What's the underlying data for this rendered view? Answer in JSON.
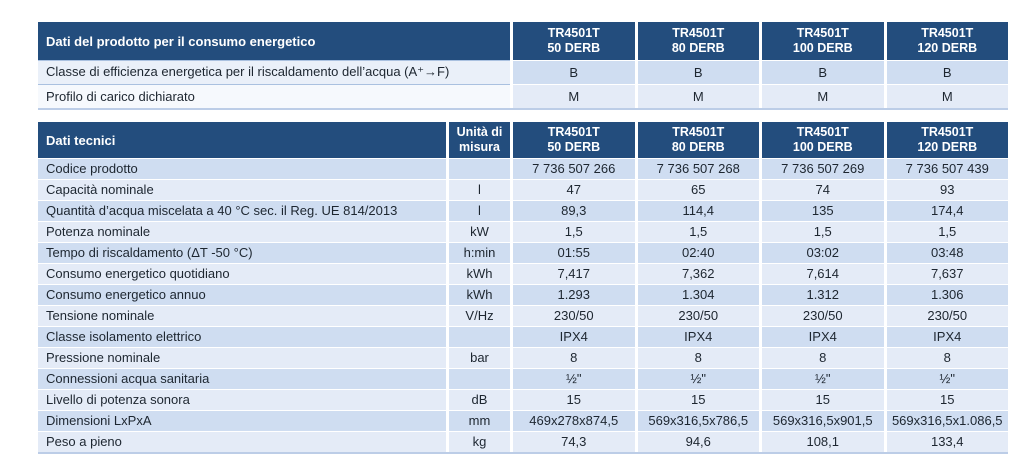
{
  "colors": {
    "header_bg": "#234d7d",
    "header_text": "#ffffff",
    "row_odd": "#cfddf1",
    "row_even": "#e4ebf7",
    "label_odd": "#eaf0f9",
    "label_even": "#f6f9fd",
    "border_blue": "#aac1e0",
    "table_bottom": "#bccde7",
    "text": "#1d2630"
  },
  "table1": {
    "title": "Dati del prodotto per il consumo energetico",
    "columns": [
      {
        "line1": "TR4501T",
        "line2": "50 DERB"
      },
      {
        "line1": "TR4501T",
        "line2": "80 DERB"
      },
      {
        "line1": "TR4501T",
        "line2": "100 DERB"
      },
      {
        "line1": "TR4501T",
        "line2": "120 DERB"
      }
    ],
    "rows": [
      {
        "label": "Classe di efficienza energetica per il riscaldamento dell’acqua (A⁺→F)",
        "values": [
          "B",
          "B",
          "B",
          "B"
        ]
      },
      {
        "label": "Profilo di carico dichiarato",
        "values": [
          "M",
          "M",
          "M",
          "M"
        ]
      }
    ]
  },
  "table2": {
    "title": "Dati tecnici",
    "unit_header": "Unità di misura",
    "columns": [
      {
        "line1": "TR4501T",
        "line2": "50 DERB"
      },
      {
        "line1": "TR4501T",
        "line2": "80 DERB"
      },
      {
        "line1": "TR4501T",
        "line2": "100 DERB"
      },
      {
        "line1": "TR4501T",
        "line2": "120 DERB"
      }
    ],
    "rows": [
      {
        "label": "Codice prodotto",
        "unit": "",
        "values": [
          "7 736 507 266",
          "7 736 507 268",
          "7 736 507 269",
          "7 736 507 439"
        ]
      },
      {
        "label": "Capacità nominale",
        "unit": "l",
        "values": [
          "47",
          "65",
          "74",
          "93"
        ]
      },
      {
        "label": "Quantità d’acqua miscelata a 40 °C sec. il Reg. UE 814/2013",
        "unit": "l",
        "values": [
          "89,3",
          "114,4",
          "135",
          "174,4"
        ]
      },
      {
        "label": "Potenza nominale",
        "unit": "kW",
        "values": [
          "1,5",
          "1,5",
          "1,5",
          "1,5"
        ]
      },
      {
        "label": "Tempo di riscaldamento (ΔT -50 °C)",
        "unit": "h:min",
        "values": [
          "01:55",
          "02:40",
          "03:02",
          "03:48"
        ]
      },
      {
        "label": "Consumo energetico quotidiano",
        "unit": "kWh",
        "values": [
          "7,417",
          "7,362",
          "7,614",
          "7,637"
        ]
      },
      {
        "label": "Consumo energetico annuo",
        "unit": "kWh",
        "values": [
          "1.293",
          "1.304",
          "1.312",
          "1.306"
        ]
      },
      {
        "label": "Tensione nominale",
        "unit": "V/Hz",
        "values": [
          "230/50",
          "230/50",
          "230/50",
          "230/50"
        ]
      },
      {
        "label": "Classe isolamento elettrico",
        "unit": "",
        "values": [
          "IPX4",
          "IPX4",
          "IPX4",
          "IPX4"
        ]
      },
      {
        "label": "Pressione nominale",
        "unit": "bar",
        "values": [
          "8",
          "8",
          "8",
          "8"
        ]
      },
      {
        "label": "Connessioni acqua sanitaria",
        "unit": "",
        "values": [
          "½\"",
          "½\"",
          "½\"",
          "½\""
        ]
      },
      {
        "label": "Livello di potenza sonora",
        "unit": "dB",
        "values": [
          "15",
          "15",
          "15",
          "15"
        ]
      },
      {
        "label": "Dimensioni LxPxA",
        "unit": "mm",
        "values": [
          "469x278x874,5",
          "569x316,5x786,5",
          "569x316,5x901,5",
          "569x316,5x1.086,5"
        ]
      },
      {
        "label": "Peso a pieno",
        "unit": "kg",
        "values": [
          "74,3",
          "94,6",
          "108,1",
          "133,4"
        ]
      }
    ]
  }
}
